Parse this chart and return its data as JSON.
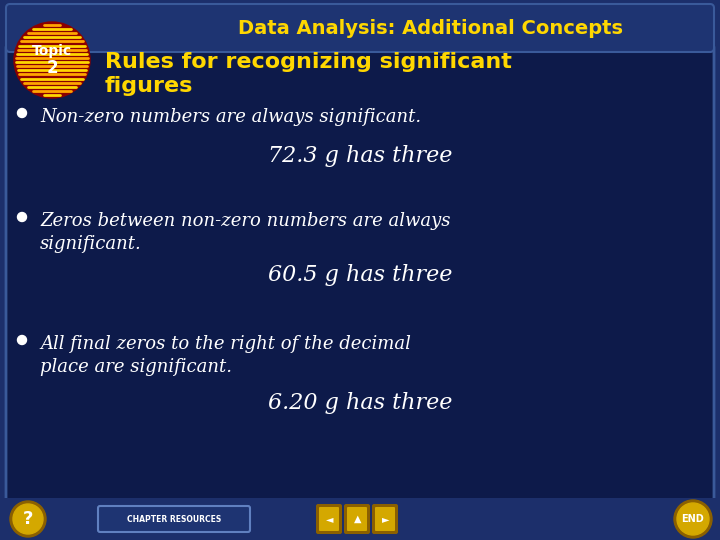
{
  "title": "Data Analysis: Additional Concepts",
  "title_color": "#FFD700",
  "title_fontsize": 14,
  "subtitle": "Rules for recognizing significant\nfigures",
  "subtitle_color": "#FFD700",
  "subtitle_fontsize": 16,
  "bg_outer": "#1c2f6b",
  "bg_inner": "#0d1a4a",
  "bg_title_bar": "#1e3472",
  "bullet_color": "#FFFFFF",
  "bullet_fontsize": 13,
  "example_color": "#FFFFFF",
  "example_fontsize": 16,
  "bullets": [
    "Non-zero numbers are always significant.",
    "Zeros between non-zero numbers are always\nsignificant.",
    "All final zeros to the right of the decimal\nplace are significant."
  ],
  "examples": [
    "72.3 g has three",
    "60.5 g has three",
    "6.20 g has three"
  ],
  "bottom_bg": "#1c2f6b",
  "chapter_resources_color": "#FFFFFF",
  "nav_color": "#D4A800",
  "end_circle_color": "#D4A800",
  "q_circle_color": "#D4A800"
}
